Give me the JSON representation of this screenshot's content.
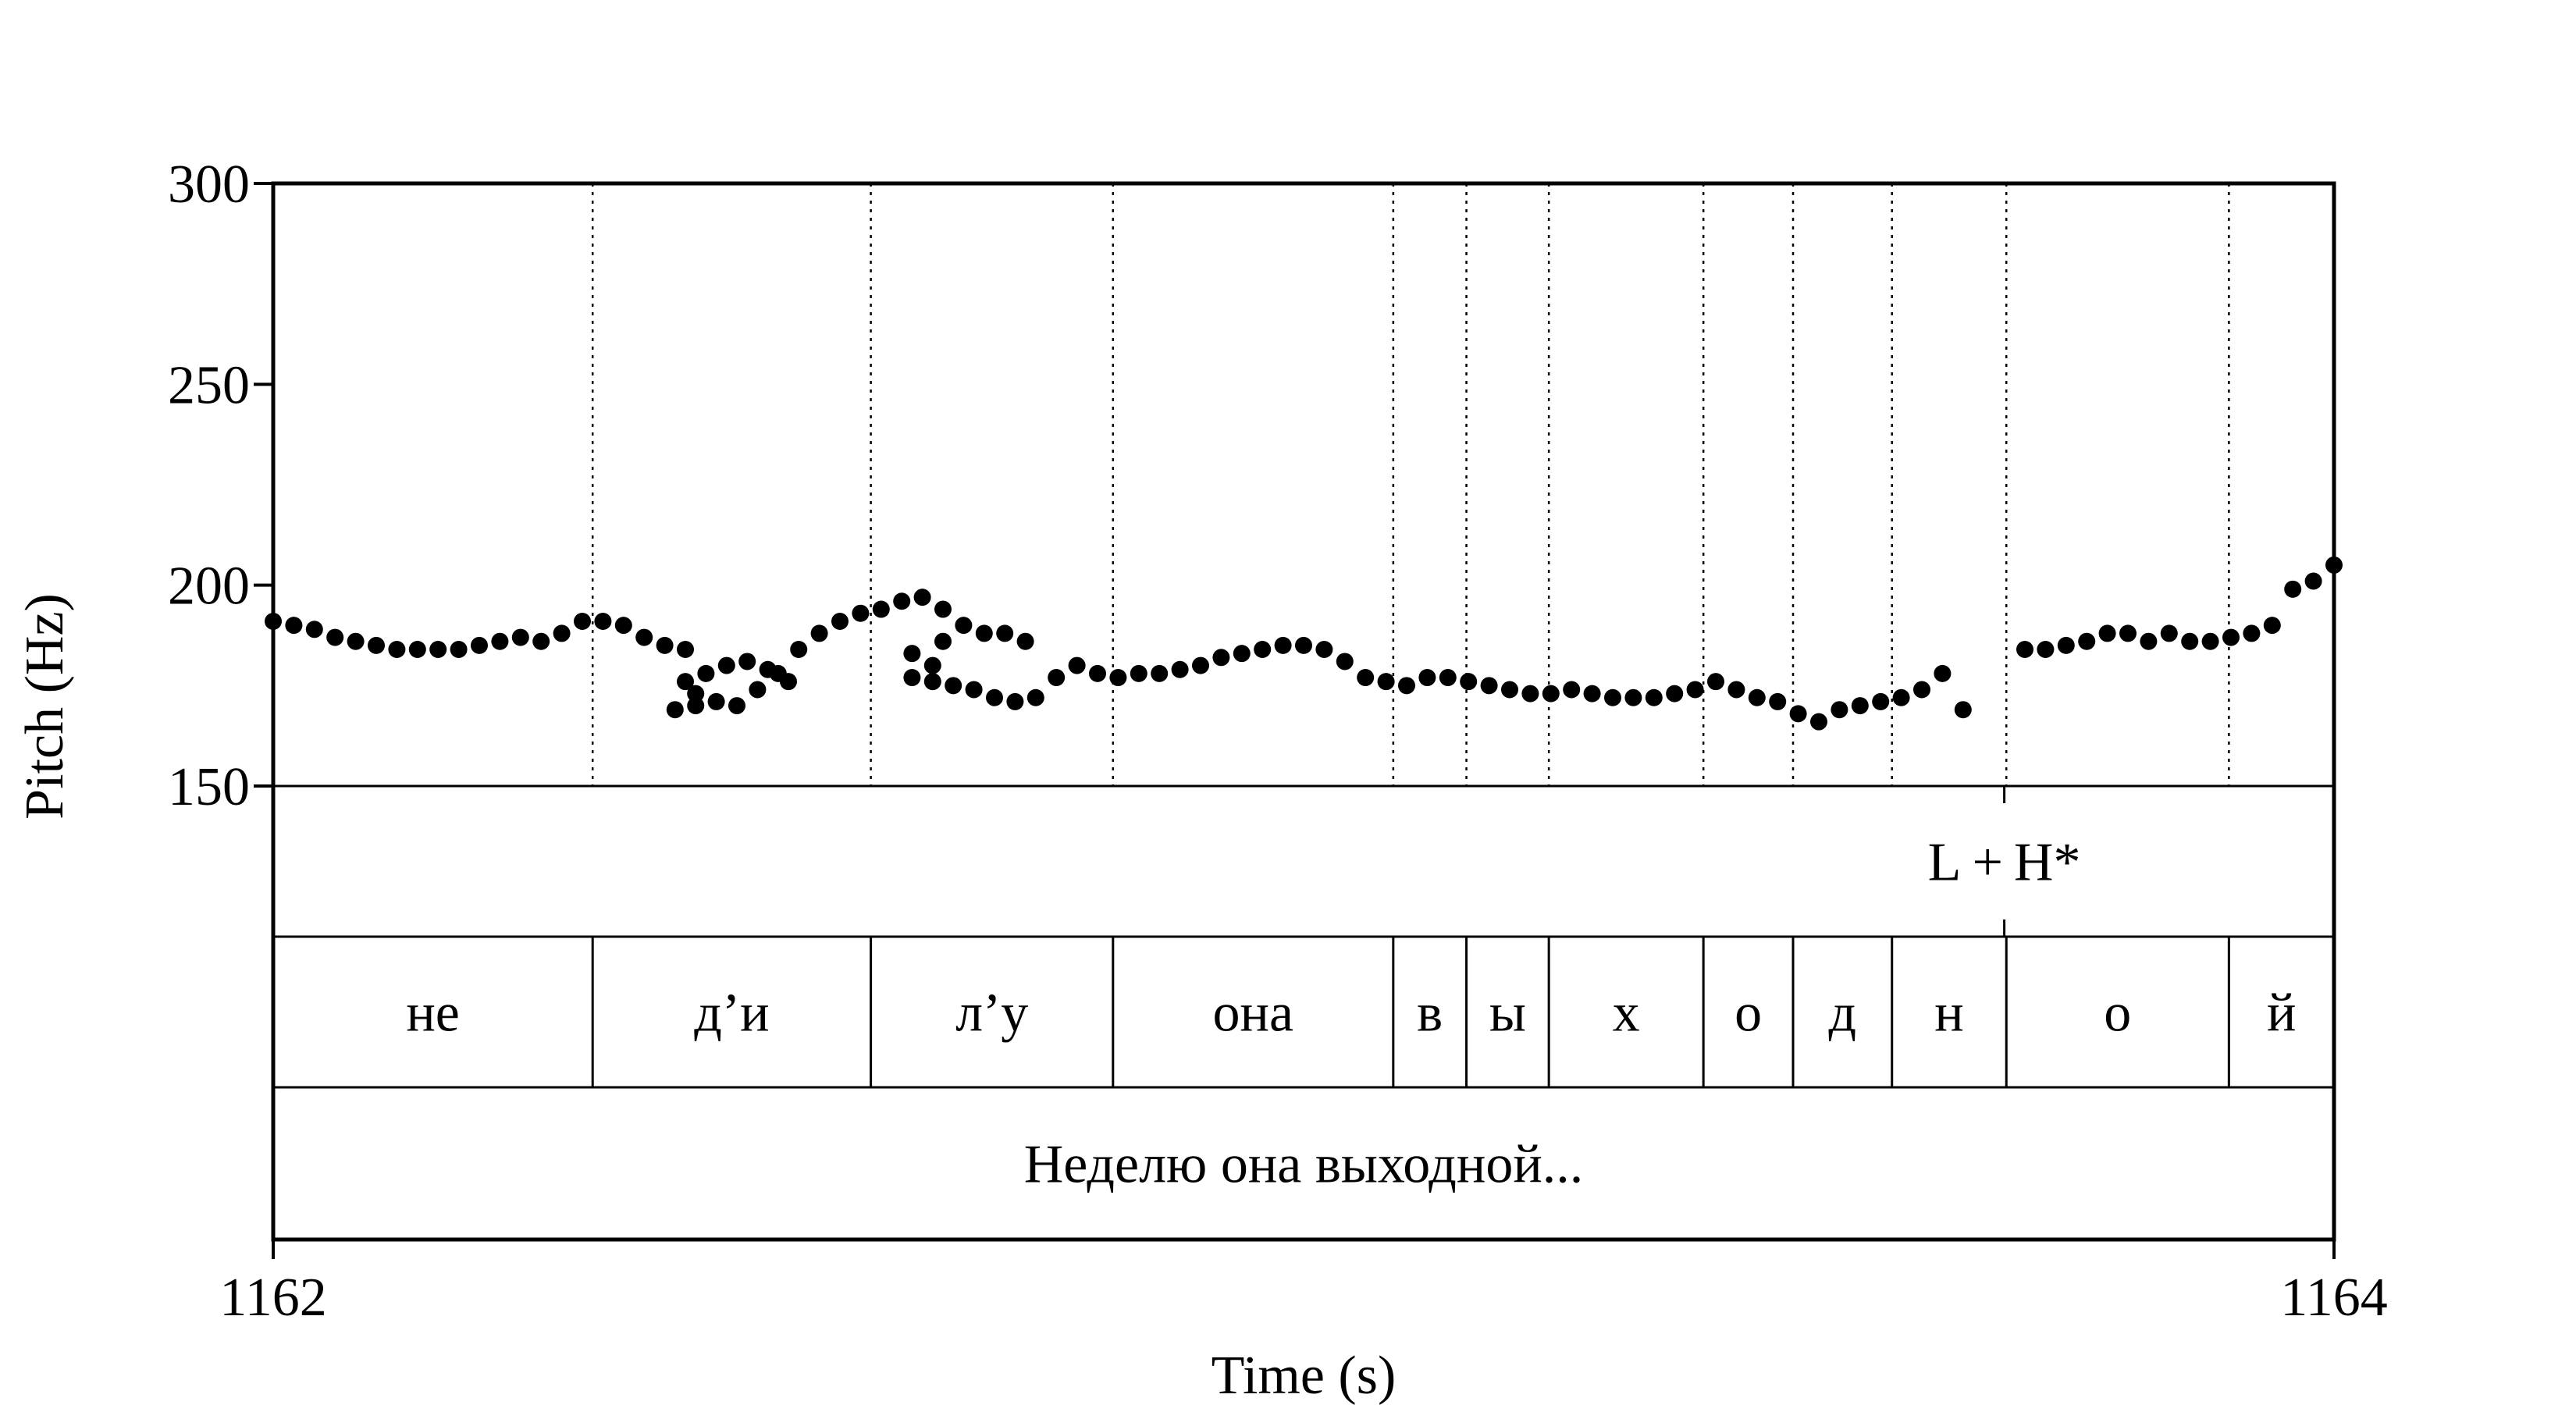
{
  "chart_data": {
    "type": "scatter",
    "xlabel": "Time (s)",
    "ylabel": "Pitch (Hz)",
    "xlim": [
      1162,
      1164
    ],
    "ylim": [
      150,
      300
    ],
    "x_ticks": [
      "1162",
      "1164"
    ],
    "y_ticks": [
      "300",
      "250",
      "200",
      "150"
    ],
    "grid": false,
    "series": [
      {
        "marker": "dot",
        "color": "#000000",
        "points": [
          [
            1162.0,
            191
          ],
          [
            1162.02,
            190
          ],
          [
            1162.04,
            189
          ],
          [
            1162.06,
            187
          ],
          [
            1162.08,
            186
          ],
          [
            1162.1,
            185
          ],
          [
            1162.12,
            184
          ],
          [
            1162.14,
            184
          ],
          [
            1162.16,
            184
          ],
          [
            1162.18,
            184
          ],
          [
            1162.2,
            185
          ],
          [
            1162.22,
            186
          ],
          [
            1162.24,
            187
          ],
          [
            1162.26,
            186
          ],
          [
            1162.28,
            188
          ],
          [
            1162.3,
            191
          ],
          [
            1162.32,
            191
          ],
          [
            1162.34,
            190
          ],
          [
            1162.36,
            187
          ],
          [
            1162.38,
            185
          ],
          [
            1162.4,
            184
          ],
          [
            1162.42,
            178
          ],
          [
            1162.44,
            180
          ],
          [
            1162.46,
            181
          ],
          [
            1162.48,
            179
          ],
          [
            1162.5,
            176
          ],
          [
            1162.4,
            176
          ],
          [
            1162.41,
            173
          ],
          [
            1162.39,
            169
          ],
          [
            1162.41,
            170
          ],
          [
            1162.43,
            171
          ],
          [
            1162.45,
            170
          ],
          [
            1162.47,
            174
          ],
          [
            1162.49,
            178
          ],
          [
            1162.51,
            184
          ],
          [
            1162.53,
            188
          ],
          [
            1162.55,
            191
          ],
          [
            1162.57,
            193
          ],
          [
            1162.59,
            194
          ],
          [
            1162.61,
            196
          ],
          [
            1162.63,
            197
          ],
          [
            1162.65,
            194
          ],
          [
            1162.67,
            190
          ],
          [
            1162.69,
            188
          ],
          [
            1162.71,
            188
          ],
          [
            1162.73,
            186
          ],
          [
            1162.65,
            186
          ],
          [
            1162.62,
            183
          ],
          [
            1162.64,
            180
          ],
          [
            1162.62,
            177
          ],
          [
            1162.64,
            176
          ],
          [
            1162.66,
            175
          ],
          [
            1162.68,
            174
          ],
          [
            1162.7,
            172
          ],
          [
            1162.72,
            171
          ],
          [
            1162.74,
            172
          ],
          [
            1162.76,
            177
          ],
          [
            1162.78,
            180
          ],
          [
            1162.8,
            178
          ],
          [
            1162.82,
            177
          ],
          [
            1162.84,
            178
          ],
          [
            1162.86,
            178
          ],
          [
            1162.88,
            179
          ],
          [
            1162.9,
            180
          ],
          [
            1162.92,
            182
          ],
          [
            1162.94,
            183
          ],
          [
            1162.96,
            184
          ],
          [
            1162.98,
            185
          ],
          [
            1163.0,
            185
          ],
          [
            1163.02,
            184
          ],
          [
            1163.04,
            181
          ],
          [
            1163.06,
            177
          ],
          [
            1163.08,
            176
          ],
          [
            1163.1,
            175
          ],
          [
            1163.12,
            177
          ],
          [
            1163.14,
            177
          ],
          [
            1163.16,
            176
          ],
          [
            1163.18,
            175
          ],
          [
            1163.2,
            174
          ],
          [
            1163.22,
            173
          ],
          [
            1163.24,
            173
          ],
          [
            1163.26,
            174
          ],
          [
            1163.28,
            173
          ],
          [
            1163.3,
            172
          ],
          [
            1163.32,
            172
          ],
          [
            1163.34,
            172
          ],
          [
            1163.36,
            173
          ],
          [
            1163.38,
            174
          ],
          [
            1163.4,
            176
          ],
          [
            1163.42,
            174
          ],
          [
            1163.44,
            172
          ],
          [
            1163.46,
            171
          ],
          [
            1163.48,
            168
          ],
          [
            1163.5,
            166
          ],
          [
            1163.52,
            169
          ],
          [
            1163.54,
            170
          ],
          [
            1163.56,
            171
          ],
          [
            1163.58,
            172
          ],
          [
            1163.6,
            174
          ],
          [
            1163.62,
            178
          ],
          [
            1163.64,
            169
          ],
          [
            1163.7,
            184
          ],
          [
            1163.72,
            184
          ],
          [
            1163.74,
            185
          ],
          [
            1163.76,
            186
          ],
          [
            1163.78,
            188
          ],
          [
            1163.8,
            188
          ],
          [
            1163.82,
            186
          ],
          [
            1163.84,
            188
          ],
          [
            1163.86,
            186
          ],
          [
            1163.88,
            186
          ],
          [
            1163.9,
            187
          ],
          [
            1163.92,
            188
          ],
          [
            1163.94,
            190
          ],
          [
            1163.96,
            199
          ],
          [
            1163.98,
            201
          ],
          [
            1164.0,
            205
          ]
        ]
      }
    ],
    "tiers": [
      {
        "type": "points",
        "items": [
          {
            "time": 1163.68,
            "label": "L + H*"
          }
        ]
      },
      {
        "type": "intervals",
        "boundaries": [
          1162.0,
          1162.31,
          1162.58,
          1162.815,
          1163.087,
          1163.158,
          1163.238,
          1163.388,
          1163.475,
          1163.571,
          1163.682,
          1163.898,
          1164.0
        ],
        "labels": [
          "не",
          "д’и",
          "л’у",
          "она",
          "в",
          "ы",
          "х",
          "о",
          "д",
          "н",
          "о",
          "й"
        ]
      },
      {
        "type": "intervals",
        "boundaries": [
          1162.0,
          1164.0
        ],
        "labels": [
          "Неделю она выходной..."
        ]
      }
    ]
  }
}
